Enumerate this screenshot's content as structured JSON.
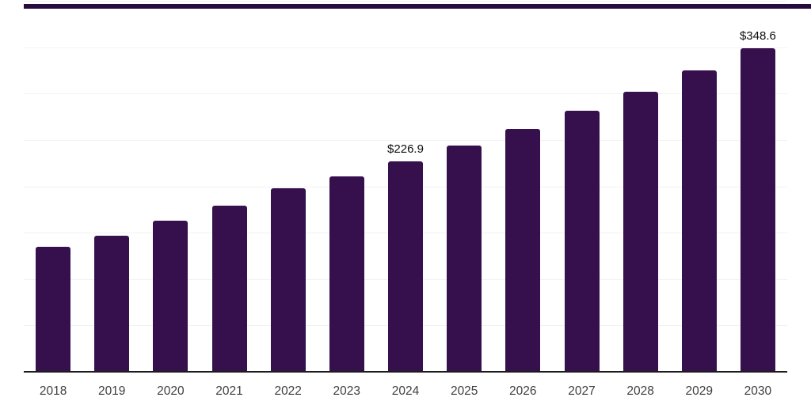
{
  "page": {
    "background": "#ffffff"
  },
  "top_strip": {
    "color": "#250C3C"
  },
  "chart_data": {
    "type": "bar",
    "title": "",
    "xlabel": "",
    "ylabel": "",
    "categories": [
      "2018",
      "2019",
      "2020",
      "2021",
      "2022",
      "2023",
      "2024",
      "2025",
      "2026",
      "2027",
      "2028",
      "2029",
      "2030"
    ],
    "values": [
      134.9,
      146.7,
      162.9,
      179.1,
      197.9,
      210.7,
      226.9,
      243.9,
      261.8,
      281.4,
      301.9,
      325.0,
      348.6
    ],
    "data_labels": [
      {
        "category": "2024",
        "text": "$226.9"
      },
      {
        "category": "2030",
        "text": "$348.6"
      }
    ],
    "ylim": [
      0,
      400
    ],
    "grid_step": 50,
    "grid": "horizontal",
    "y_tick_labels_visible": false,
    "legend": "none",
    "colors": {
      "bar": "#36104D",
      "gridline": "#F2F2F2",
      "axis_line": "#1C1C1C",
      "value_label": "#0D0D0D",
      "tick_label": "#404040"
    }
  }
}
